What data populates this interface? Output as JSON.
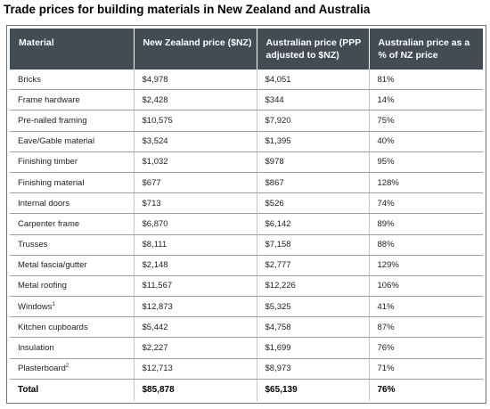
{
  "title": "Trade prices for building materials in New Zealand and Australia",
  "headers": [
    "Material",
    "New Zealand price ($NZ)",
    "Australian price (PPP adjusted to $NZ)",
    "Australian price as a % of NZ price"
  ],
  "rows": [
    {
      "material": "Bricks",
      "sup": "",
      "nz": "$4,978",
      "au": "$4,051",
      "pct": "81%"
    },
    {
      "material": "Frame hardware",
      "sup": "",
      "nz": "$2,428",
      "au": "$344",
      "pct": "14%"
    },
    {
      "material": "Pre-nailed framing",
      "sup": "",
      "nz": "$10,575",
      "au": "$7,920",
      "pct": "75%"
    },
    {
      "material": "Eave/Gable material",
      "sup": "",
      "nz": "$3,524",
      "au": "$1,395",
      "pct": "40%"
    },
    {
      "material": "Finishing timber",
      "sup": "",
      "nz": "$1,032",
      "au": "$978",
      "pct": "95%"
    },
    {
      "material": "Finishing material",
      "sup": "",
      "nz": "$677",
      "au": "$867",
      "pct": "128%"
    },
    {
      "material": "Internal doors",
      "sup": "",
      "nz": "$713",
      "au": "$526",
      "pct": "74%"
    },
    {
      "material": "Carpenter frame",
      "sup": "",
      "nz": "$6,870",
      "au": "$6,142",
      "pct": "89%"
    },
    {
      "material": "Trusses",
      "sup": "",
      "nz": "$8,111",
      "au": "$7,158",
      "pct": "88%"
    },
    {
      "material": "Metal fascia/gutter",
      "sup": "",
      "nz": "$2,148",
      "au": "$2,777",
      "pct": "129%"
    },
    {
      "material": "Metal roofing",
      "sup": "",
      "nz": "$11,567",
      "au": "$12,226",
      "pct": "106%"
    },
    {
      "material": "Windows",
      "sup": "1",
      "nz": "$12,873",
      "au": "$5,325",
      "pct": "41%"
    },
    {
      "material": "Kitchen cupboards",
      "sup": "",
      "nz": "$5,442",
      "au": "$4,758",
      "pct": "87%"
    },
    {
      "material": "Insulation",
      "sup": "",
      "nz": "$2,227",
      "au": "$1,699",
      "pct": "76%"
    },
    {
      "material": "Plasterboard",
      "sup": "2",
      "nz": "$12,713",
      "au": "$8,973",
      "pct": "71%"
    }
  ],
  "total": {
    "material": "Total",
    "nz": "$85,878",
    "au": "$65,139",
    "pct": "76%"
  }
}
